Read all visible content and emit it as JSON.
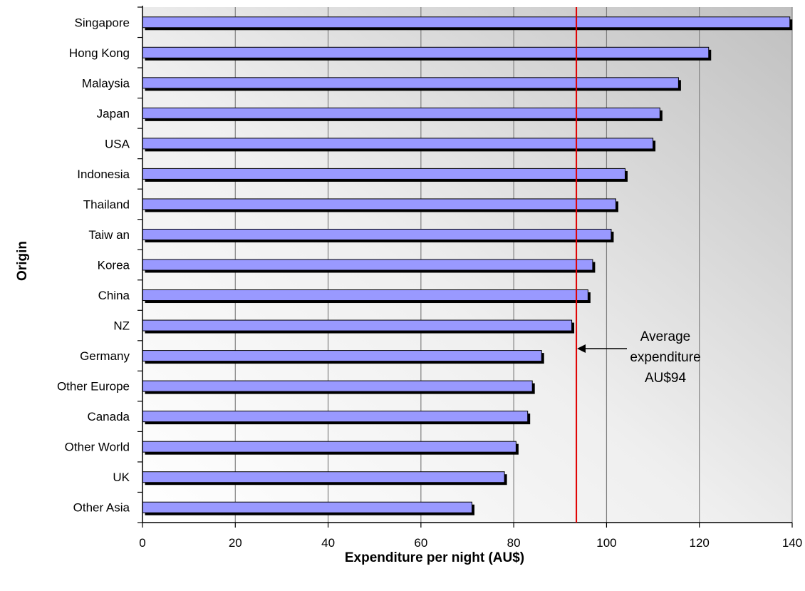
{
  "chart_data": {
    "type": "bar",
    "orientation": "horizontal",
    "title": "",
    "xlabel": "Expenditure per night (AU$)",
    "ylabel": "Origin",
    "xlim": [
      0,
      140
    ],
    "xticks": [
      0,
      20,
      40,
      60,
      80,
      100,
      120,
      140
    ],
    "grid": true,
    "categories": [
      "Singapore",
      "Hong Kong",
      "Malaysia",
      "Japan",
      "USA",
      "Indonesia",
      "Thailand",
      "Taiw an",
      "Korea",
      "China",
      "NZ",
      "Germany",
      "Other Europe",
      "Canada",
      "Other World",
      "UK",
      "Other Asia"
    ],
    "values": [
      139.5,
      122,
      115.5,
      111.5,
      110,
      104,
      102,
      101,
      97,
      96,
      92.5,
      86,
      84,
      83,
      80.5,
      78,
      71
    ],
    "reference_line": {
      "value": 93.5,
      "color": "#e00000"
    },
    "annotation": {
      "lines": [
        "Average",
        "expenditure",
        "AU$94"
      ]
    },
    "colors": {
      "bar": "#9999ff",
      "shadow": "#000000",
      "grid": "#808080",
      "ref": "#e00000"
    }
  }
}
